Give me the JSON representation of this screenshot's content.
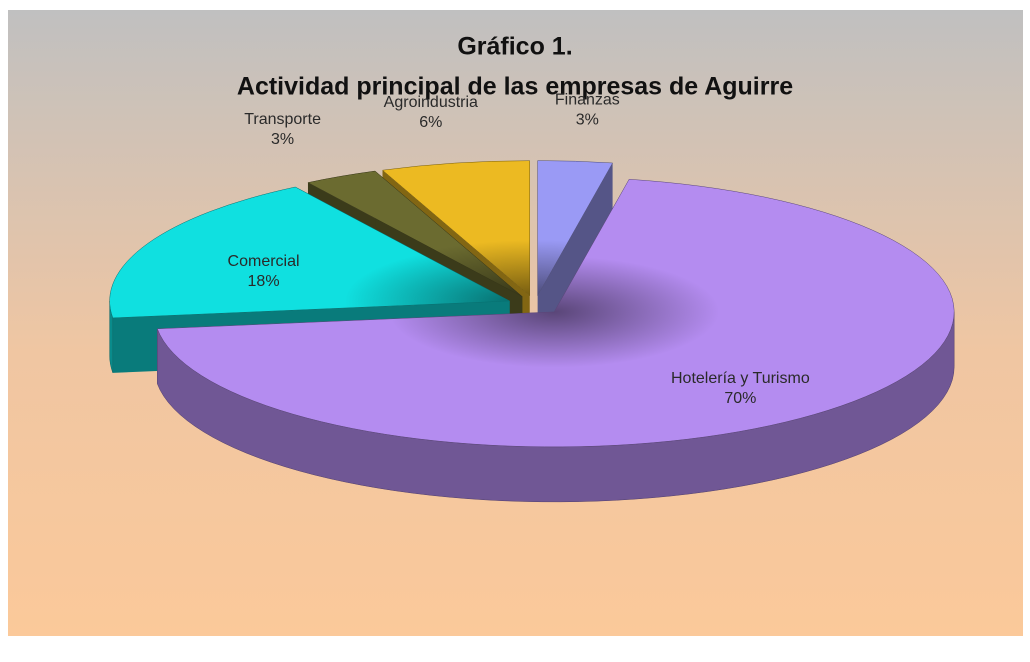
{
  "chart_data": {
    "type": "pie3d",
    "title": [
      "Gráfico 1.",
      "Actividad principal de las empresas de Aguirre"
    ],
    "categories": [
      "Finanzas",
      "Hotelería y Turismo",
      "Comercial",
      "Transporte",
      "Agroindustria"
    ],
    "values": [
      3,
      70,
      18,
      3,
      6
    ],
    "value_labels": [
      "3%",
      "70%",
      "18%",
      "3%",
      "6%"
    ],
    "colors": [
      "#9a9af5",
      "#b48cf0",
      "#10e0e0",
      "#6b6b30",
      "#ecba22"
    ]
  }
}
